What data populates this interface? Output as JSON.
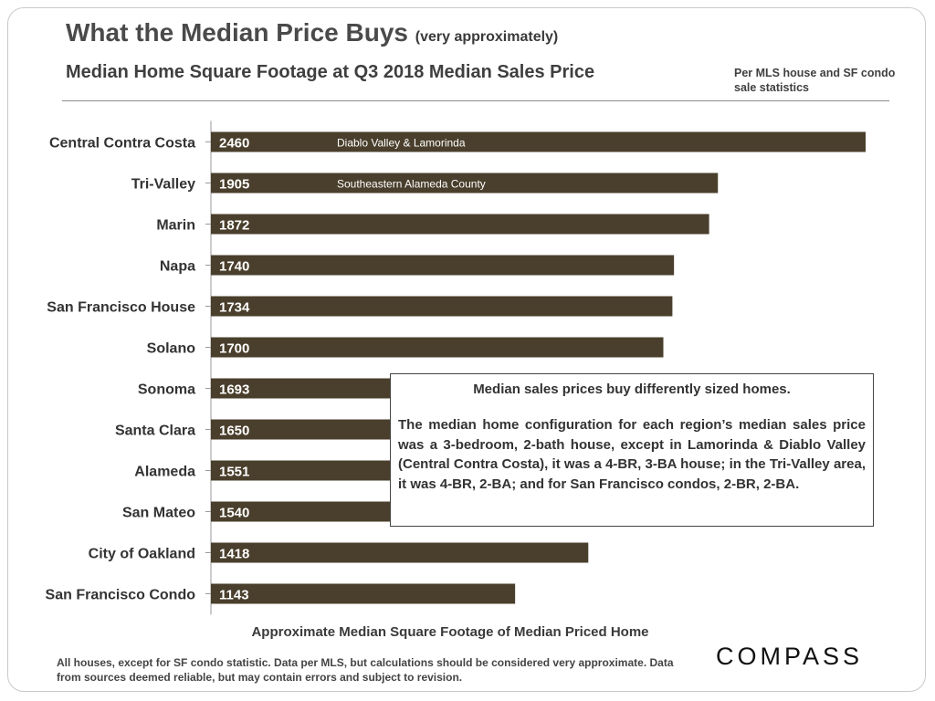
{
  "header": {
    "title_main": "What the Median Price Buys",
    "title_sub": "(very approximately)",
    "subtitle": "Median Home Square Footage at Q3 2018 Median Sales Price",
    "note": "Per MLS house and SF condo sale statistics"
  },
  "chart_data": {
    "type": "bar",
    "orientation": "horizontal",
    "categories": [
      "Central Contra Costa",
      "Tri-Valley",
      "Marin",
      "Napa",
      "San Francisco House",
      "Solano",
      "Sonoma",
      "Santa Clara",
      "Alameda",
      "San Mateo",
      "City of Oakland",
      "San Francisco Condo"
    ],
    "values": [
      2460,
      1905,
      1872,
      1740,
      1734,
      1700,
      1693,
      1650,
      1551,
      1540,
      1418,
      1143
    ],
    "annotations": [
      "Diablo Valley & Lamorinda",
      "Southeastern Alameda County",
      "",
      "",
      "",
      "",
      "",
      "",
      "",
      "",
      "",
      ""
    ],
    "xlabel": "Approximate Median Square Footage of Median Priced Home",
    "ylabel": "",
    "xlim": [
      0,
      2460
    ],
    "bar_color": "#4a3f2c",
    "grid": false,
    "legend": "none"
  },
  "callout": {
    "title": "Median sales prices buy differently sized homes.",
    "body": "The median home configuration for each region’s median sales price was a 3-bedroom, 2-bath house, except in Lamorinda & Diablo Valley (Central Contra Costa), it was a 4-BR, 3-BA house; in the Tri-Valley area, it was 4-BR, 2-BA; and for San Francisco condos, 2-BR, 2-BA."
  },
  "footnote": "All houses, except for SF condo statistic. Data per MLS, but calculations should be considered very approximate. Data from sources deemed reliable, but may contain errors and subject to revision.",
  "logo_text": "COMPASS"
}
